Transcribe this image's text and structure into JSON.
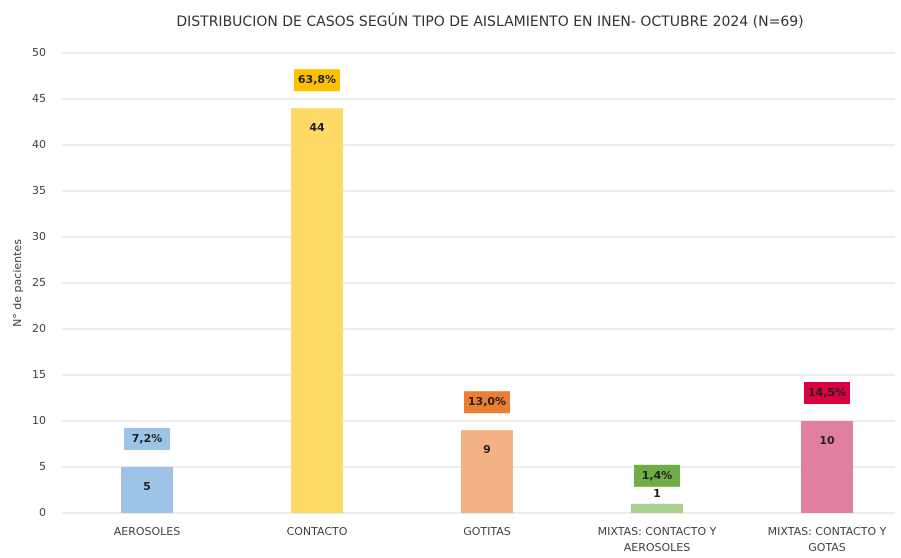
{
  "chart_data": {
    "type": "bar",
    "title": "DISTRIBUCION DE CASOS SEGÚN TIPO DE AISLAMIENTO EN INEN- OCTUBRE 2024 (N=69)",
    "y_label": "N° de pacientes",
    "categories": [
      "AEROSOLES",
      "CONTACTO",
      "GOTITAS",
      "MIXTAS: CONTACTO Y AEROSOLES",
      "MIXTAS: CONTACTO Y GOTAS"
    ],
    "values": [
      5,
      44,
      9,
      1,
      10
    ],
    "colors": [
      "#9dc3e6",
      "#ffd966",
      "#f4b183",
      "#a9d18e",
      "#e07fa0"
    ],
    "percent_labels": [
      "7,2%",
      "63,8%",
      "13,0%",
      "1,4%",
      "14,5%"
    ],
    "percent_label_colors": [
      "#9dc3e6",
      "#ffc000",
      "#ed7d31",
      "#70ad47",
      "#d9043f"
    ],
    "ylim": [
      0,
      50
    ],
    "yticks": [
      0,
      5,
      10,
      15,
      20,
      25,
      30,
      35,
      40,
      45,
      50
    ],
    "grid": true
  }
}
